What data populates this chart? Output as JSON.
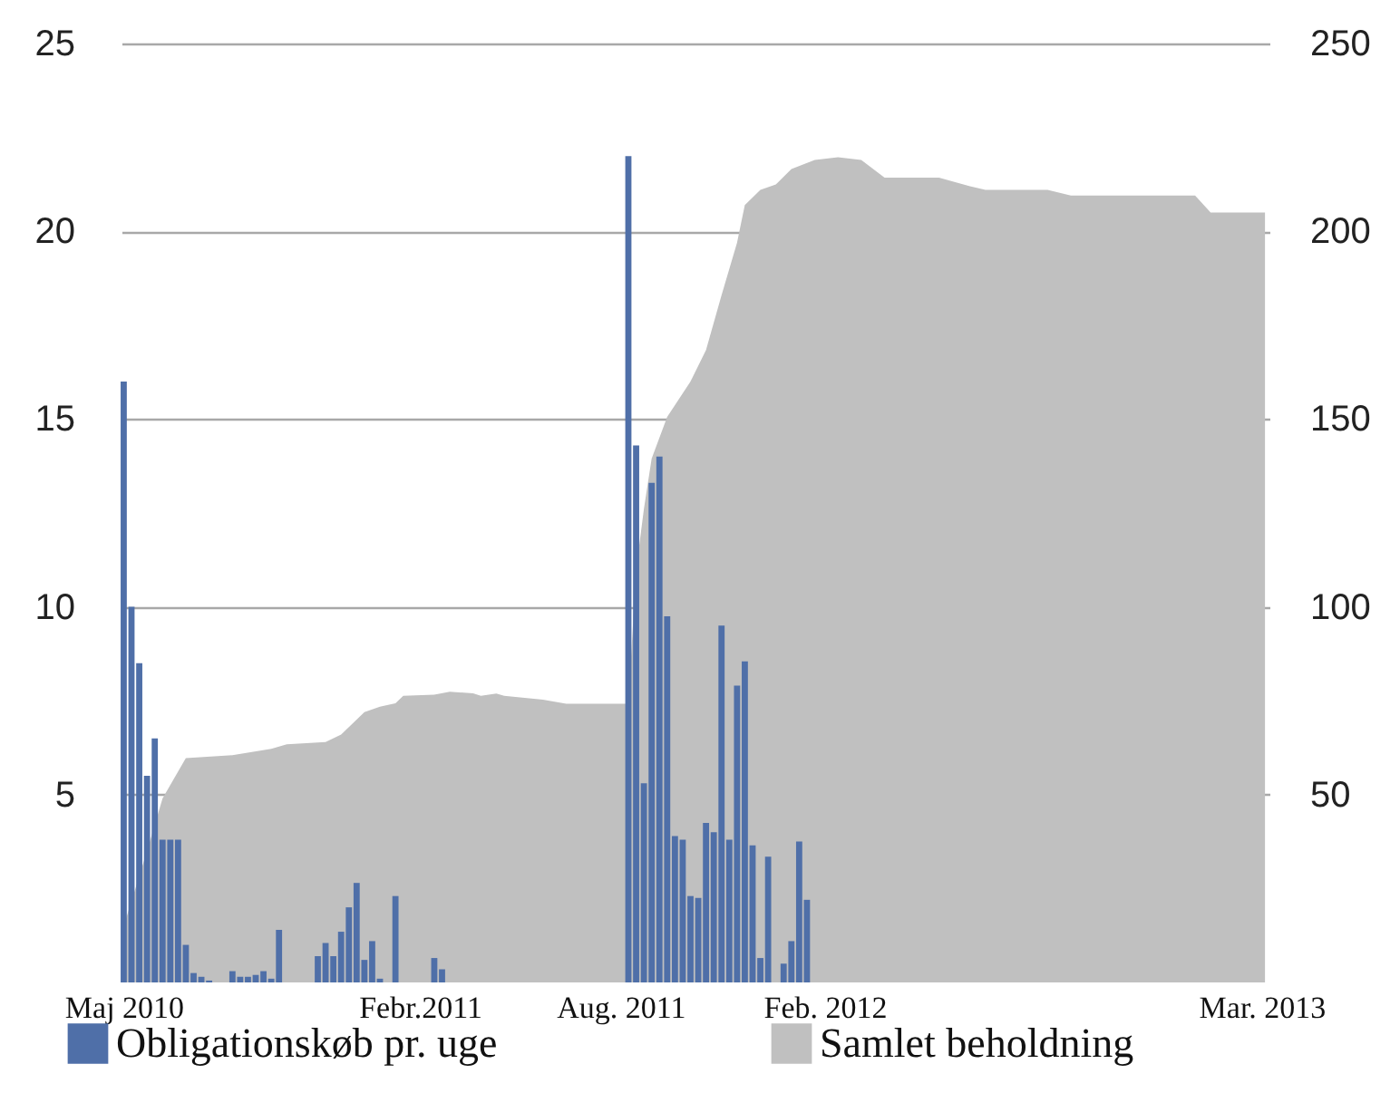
{
  "chart_data": {
    "type": "bar",
    "legend": "bottom",
    "grid": "y",
    "xlim": [
      "2010-05-08",
      "2013-03-08"
    ],
    "xticks": [
      {
        "value": "2010-05-10",
        "label": "Maj 2010"
      },
      {
        "value": "2011-02-01",
        "label": "Febr.2011"
      },
      {
        "value": "2011-08-01",
        "label": "Aug. 2011"
      },
      {
        "value": "2012-02-01",
        "label": "Feb. 2012"
      },
      {
        "value": "2013-03-01",
        "label": "Mar. 2013"
      }
    ],
    "ylim": [
      0,
      25
    ],
    "yticks": [
      5,
      10,
      15,
      20,
      25
    ],
    "y2lim": [
      0,
      250
    ],
    "y2ticks": [
      50,
      100,
      150,
      200,
      250
    ],
    "series": [
      {
        "name": "Obligationskøb pr. uge",
        "color": "#4f6fa8",
        "x": [
          "2010-05-10",
          "2010-05-17",
          "2010-05-24",
          "2010-05-31",
          "2010-06-07",
          "2010-06-14",
          "2010-06-21",
          "2010-06-28",
          "2010-07-05",
          "2010-07-12",
          "2010-07-19",
          "2010-07-26",
          "2010-08-16",
          "2010-08-23",
          "2010-08-30",
          "2010-09-06",
          "2010-09-13",
          "2010-09-20",
          "2010-09-27",
          "2010-11-01",
          "2010-11-08",
          "2010-11-15",
          "2010-11-22",
          "2010-11-29",
          "2010-12-06",
          "2010-12-13",
          "2010-12-20",
          "2010-12-27",
          "2011-01-10",
          "2011-02-14",
          "2011-02-21",
          "2011-08-08",
          "2011-08-15",
          "2011-08-22",
          "2011-08-29",
          "2011-09-05",
          "2011-09-12",
          "2011-09-19",
          "2011-09-26",
          "2011-10-03",
          "2011-10-10",
          "2011-10-17",
          "2011-10-24",
          "2011-10-31",
          "2011-11-07",
          "2011-11-14",
          "2011-11-21",
          "2011-11-28",
          "2011-12-05",
          "2011-12-12",
          "2011-12-26",
          "2012-01-02",
          "2012-01-09",
          "2012-01-16"
        ],
        "values": [
          16,
          10,
          8.5,
          5.5,
          6.5,
          3.8,
          3.8,
          3.8,
          1,
          0.25,
          0.15,
          0.05,
          0.3,
          0.15,
          0.15,
          0.2,
          0.3,
          0.1,
          1.4,
          0.7,
          1.05,
          0.7,
          1.35,
          2,
          2.65,
          0.6,
          1.1,
          0.1,
          2.3,
          0.65,
          0.35,
          22,
          14.3,
          5.3,
          13.3,
          14,
          9.75,
          3.9,
          3.8,
          2.3,
          2.25,
          4.25,
          4,
          9.5,
          3.8,
          7.9,
          8.55,
          3.65,
          0.65,
          3.35,
          0.5,
          1.1,
          3.75,
          2.2
        ]
      },
      {
        "name": "Samlet beholdning",
        "type": "area",
        "axis": "y2",
        "color": "#c0c0c0",
        "x": [
          "2010-05-10",
          "2010-05-31",
          "2010-06-14",
          "2010-07-05",
          "2010-08-16",
          "2010-09-20",
          "2010-10-04",
          "2010-11-08",
          "2010-11-22",
          "2010-12-13",
          "2010-12-27",
          "2011-01-10",
          "2011-01-17",
          "2011-02-14",
          "2011-02-28",
          "2011-03-21",
          "2011-03-28",
          "2011-04-11",
          "2011-04-18",
          "2011-05-23",
          "2011-06-13",
          "2011-08-08",
          "2011-08-15",
          "2011-08-22",
          "2011-08-29",
          "2011-09-12",
          "2011-10-03",
          "2011-10-17",
          "2011-10-31",
          "2011-11-14",
          "2011-11-21",
          "2011-12-05",
          "2011-12-19",
          "2012-01-02",
          "2012-01-23",
          "2012-02-13",
          "2012-03-05",
          "2012-03-26",
          "2012-05-14",
          "2012-06-11",
          "2012-06-25",
          "2012-08-20",
          "2012-09-10",
          "2012-12-31",
          "2013-01-14",
          "2013-03-04"
        ],
        "values": [
          15,
          35,
          49,
          59.7,
          60.5,
          62.2,
          63.4,
          64,
          66,
          72,
          73.4,
          74.3,
          76.3,
          76.6,
          77.4,
          77,
          76.3,
          76.9,
          76.3,
          75.3,
          74.2,
          74.2,
          110,
          126,
          139.5,
          150.6,
          160,
          168.4,
          183,
          197,
          207,
          211,
          212.5,
          216.6,
          219,
          219.7,
          219,
          214.3,
          214.3,
          212,
          211,
          211,
          209.5,
          209.5,
          205,
          205
        ]
      }
    ]
  }
}
